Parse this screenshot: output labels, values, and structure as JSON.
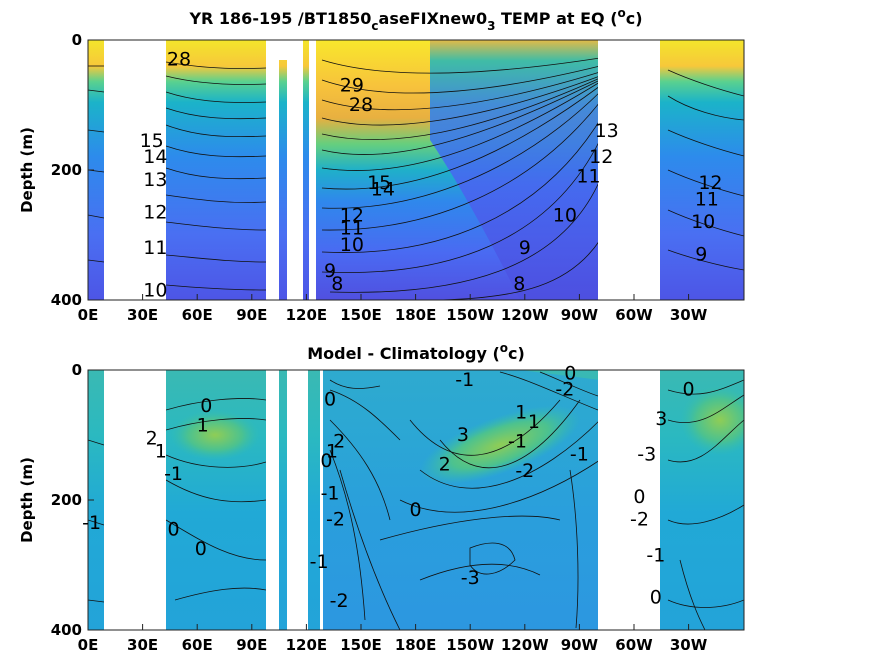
{
  "chart_data": [
    {
      "type": "heatmap",
      "title_prefix": "YR 186-195 /BT1850",
      "title_sub1": "c",
      "title_mid": "aseFIXnew0",
      "title_sub2": "3",
      "title_suffix_a": " TEMP at EQ (",
      "title_sup": "o",
      "title_suffix_b": "c)",
      "ylabel": "Depth (m)",
      "xlabel": "",
      "x_ticks": [
        "0E",
        "30E",
        "60E",
        "90E",
        "120E",
        "150E",
        "180E",
        "150W",
        "120W",
        "90W",
        "60W",
        "30W"
      ],
      "y_ticks": [
        "0",
        "200",
        "400"
      ],
      "ylim": [
        400,
        0
      ],
      "colormap": "parula",
      "contour_labels": [
        {
          "text": "28",
          "lon": 50,
          "depth": 30
        },
        {
          "text": "29",
          "lon": 145,
          "depth": 70
        },
        {
          "text": "28",
          "lon": 150,
          "depth": 100
        },
        {
          "text": "13",
          "lon": 285,
          "depth": 140
        },
        {
          "text": "12",
          "lon": 282,
          "depth": 180
        },
        {
          "text": "11",
          "lon": 275,
          "depth": 210
        },
        {
          "text": "10",
          "lon": 262,
          "depth": 270
        },
        {
          "text": "9",
          "lon": 240,
          "depth": 320
        },
        {
          "text": "8",
          "lon": 237,
          "depth": 375
        },
        {
          "text": "15",
          "lon": 35,
          "depth": 155
        },
        {
          "text": "14",
          "lon": 37,
          "depth": 180
        },
        {
          "text": "13",
          "lon": 37,
          "depth": 215
        },
        {
          "text": "12",
          "lon": 37,
          "depth": 265
        },
        {
          "text": "11",
          "lon": 37,
          "depth": 320
        },
        {
          "text": "10",
          "lon": 37,
          "depth": 385
        },
        {
          "text": "15",
          "lon": 160,
          "depth": 220
        },
        {
          "text": "14",
          "lon": 162,
          "depth": 230
        },
        {
          "text": "12",
          "lon": 145,
          "depth": 270
        },
        {
          "text": "11",
          "lon": 145,
          "depth": 290
        },
        {
          "text": "10",
          "lon": 145,
          "depth": 315
        },
        {
          "text": "9",
          "lon": 133,
          "depth": 355
        },
        {
          "text": "8",
          "lon": 137,
          "depth": 375
        },
        {
          "text": "12",
          "lon": 342,
          "depth": 220
        },
        {
          "text": "11",
          "lon": 340,
          "depth": 245
        },
        {
          "text": "10",
          "lon": 338,
          "depth": 280
        },
        {
          "text": "9",
          "lon": 337,
          "depth": 330
        }
      ]
    },
    {
      "type": "heatmap",
      "title_prefix": "Model - Climatology (",
      "title_sup": "o",
      "title_suffix": "c)",
      "ylabel": "Depth (m)",
      "xlabel": "",
      "x_ticks": [
        "0E",
        "30E",
        "60E",
        "90E",
        "120E",
        "150E",
        "180E",
        "150W",
        "120W",
        "90W",
        "60W",
        "30W"
      ],
      "y_ticks": [
        "0",
        "200",
        "400"
      ],
      "ylim": [
        400,
        0
      ],
      "colormap": "parula",
      "contour_labels": [
        {
          "text": "0",
          "lon": 65,
          "depth": 55
        },
        {
          "text": "1",
          "lon": 63,
          "depth": 85
        },
        {
          "text": "2",
          "lon": 35,
          "depth": 105
        },
        {
          "text": "1",
          "lon": 40,
          "depth": 125
        },
        {
          "text": "-1",
          "lon": 47,
          "depth": 160
        },
        {
          "text": "0",
          "lon": 133,
          "depth": 45
        },
        {
          "text": "2",
          "lon": 138,
          "depth": 110
        },
        {
          "text": "1",
          "lon": 134,
          "depth": 125
        },
        {
          "text": "0",
          "lon": 131,
          "depth": 140
        },
        {
          "text": "-1",
          "lon": 133,
          "depth": 190
        },
        {
          "text": "-2",
          "lon": 136,
          "depth": 230
        },
        {
          "text": "-1",
          "lon": 127,
          "depth": 295
        },
        {
          "text": "-2",
          "lon": 138,
          "depth": 355
        },
        {
          "text": "2",
          "lon": 196,
          "depth": 145
        },
        {
          "text": "3",
          "lon": 206,
          "depth": 100
        },
        {
          "text": "1",
          "lon": 238,
          "depth": 65
        },
        {
          "text": "-1",
          "lon": 207,
          "depth": 15
        },
        {
          "text": "0",
          "lon": 265,
          "depth": 5
        },
        {
          "text": "1",
          "lon": 245,
          "depth": 80
        },
        {
          "text": "-1",
          "lon": 236,
          "depth": 110
        },
        {
          "text": "-2",
          "lon": 240,
          "depth": 155
        },
        {
          "text": "0",
          "lon": 180,
          "depth": 215
        },
        {
          "text": "0",
          "lon": 47,
          "depth": 245
        },
        {
          "text": "-1",
          "lon": 2,
          "depth": 235
        },
        {
          "text": "0",
          "lon": 62,
          "depth": 275
        },
        {
          "text": "-3",
          "lon": 210,
          "depth": 320
        },
        {
          "text": "-2",
          "lon": 262,
          "depth": 30
        },
        {
          "text": "-1",
          "lon": 270,
          "depth": 130
        },
        {
          "text": "0",
          "lon": 330,
          "depth": 30
        },
        {
          "text": "3",
          "lon": 315,
          "depth": 75
        },
        {
          "text": "-3",
          "lon": 307,
          "depth": 130
        },
        {
          "text": "0",
          "lon": 303,
          "depth": 195
        },
        {
          "text": "-2",
          "lon": 303,
          "depth": 230
        },
        {
          "text": "-1",
          "lon": 312,
          "depth": 285
        },
        {
          "text": "0",
          "lon": 312,
          "depth": 350
        }
      ]
    }
  ]
}
